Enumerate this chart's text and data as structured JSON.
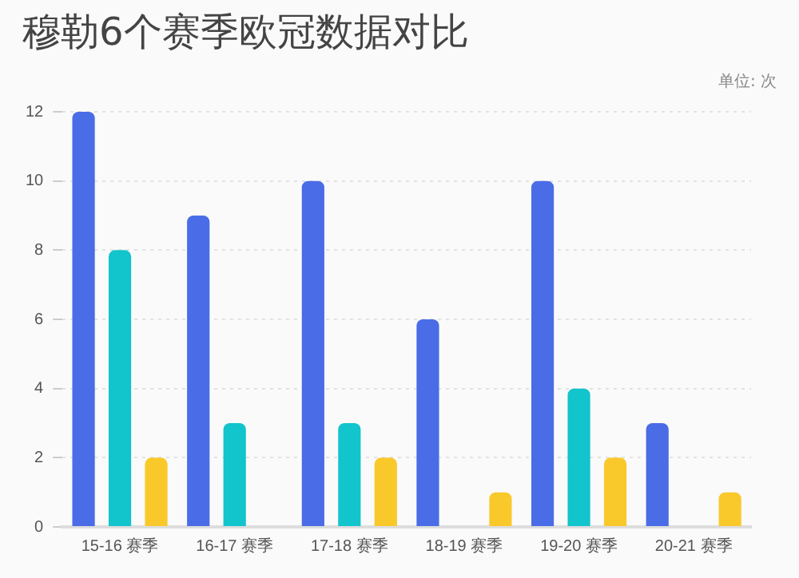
{
  "chart_data": {
    "type": "bar",
    "title": "穆勒6个赛季欧冠数据对比",
    "annotations": [
      "单位: 次"
    ],
    "categories": [
      "15-16 赛季",
      "16-17 赛季",
      "17-18 赛季",
      "18-19 赛季",
      "19-20 赛季",
      "20-21 赛季"
    ],
    "series": [
      {
        "color": "#4a6ce6",
        "values": [
          12,
          9,
          10,
          6,
          10,
          3
        ]
      },
      {
        "color": "#12c4cc",
        "values": [
          8,
          3,
          3,
          0,
          4,
          0
        ]
      },
      {
        "color": "#f9c92c",
        "values": [
          2,
          0,
          2,
          1,
          2,
          1
        ]
      }
    ],
    "ylim": [
      0,
      12
    ],
    "yticks": [
      0,
      2,
      4,
      6,
      8,
      10,
      12
    ],
    "grid": "y",
    "legend": false
  }
}
